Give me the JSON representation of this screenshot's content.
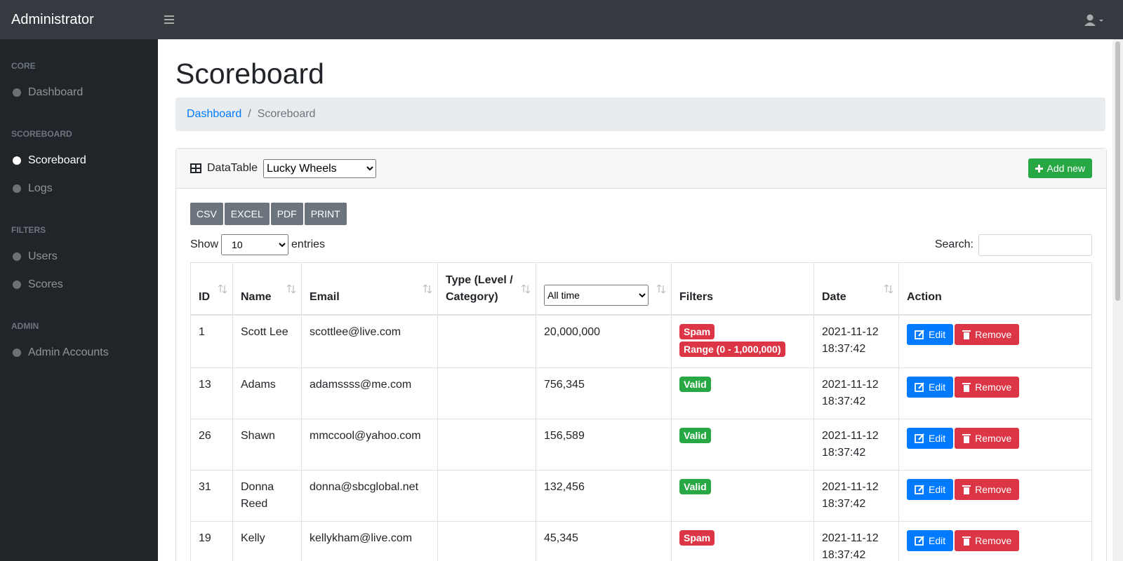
{
  "navbar": {
    "brand": "Administrator"
  },
  "sidebar": {
    "sections": [
      {
        "heading": "CORE",
        "items": [
          "Dashboard"
        ]
      },
      {
        "heading": "SCOREBOARD",
        "items": [
          "Scoreboard",
          "Logs"
        ]
      },
      {
        "heading": "FILTERS",
        "items": [
          "Users",
          "Scores"
        ]
      },
      {
        "heading": "ADMIN",
        "items": [
          "Admin Accounts"
        ]
      }
    ],
    "active": "Scoreboard"
  },
  "header": {
    "title": "Scoreboard"
  },
  "breadcrumb": [
    "Dashboard",
    "Scoreboard"
  ],
  "card": {
    "label": "DataTable",
    "game_select": "Lucky Wheels",
    "add_button": "Add new"
  },
  "export_buttons": [
    "CSV",
    "EXCEL",
    "PDF",
    "PRINT"
  ],
  "length": {
    "show": "Show",
    "value": "10",
    "entries": "entries"
  },
  "search": {
    "label": "Search:"
  },
  "table": {
    "columns": [
      "ID",
      "Name",
      "Email",
      "Type (Level / Category)",
      "All time",
      "Filters",
      "Date",
      "Action"
    ],
    "actions": [
      "Edit",
      "Remove"
    ],
    "rows": [
      {
        "id": 1,
        "name": "Scott Lee",
        "email": "scottlee@live.com",
        "score": "20,000,000",
        "filters": [
          {
            "label": "Spam",
            "color": "#dc3545"
          },
          {
            "label": "Range (0 - 1,000,000)",
            "color": "#dc3545"
          }
        ],
        "date": "2021-11-12 18:37:42"
      },
      {
        "id": 13,
        "name": "Adams",
        "email": "adamssss@me.com",
        "score": "756,345",
        "filters": [
          {
            "label": "Valid",
            "color": "#28a745"
          }
        ],
        "date": "2021-11-12 18:37:42"
      },
      {
        "id": 26,
        "name": "Shawn",
        "email": "mmccool@yahoo.com",
        "score": "156,589",
        "filters": [
          {
            "label": "Valid",
            "color": "#28a745"
          }
        ],
        "date": "2021-11-12 18:37:42"
      },
      {
        "id": 31,
        "name": "Donna Reed",
        "email": "donna@sbcglobal.net",
        "score": "132,456",
        "filters": [
          {
            "label": "Valid",
            "color": "#28a745"
          }
        ],
        "date": "2021-11-12 18:37:42"
      },
      {
        "id": 19,
        "name": "Kelly",
        "email": "kellykham@live.com",
        "score": "45,345",
        "filters": [
          {
            "label": "Spam",
            "color": "#dc3545"
          }
        ],
        "date": "2021-11-12 18:37:42"
      }
    ]
  }
}
